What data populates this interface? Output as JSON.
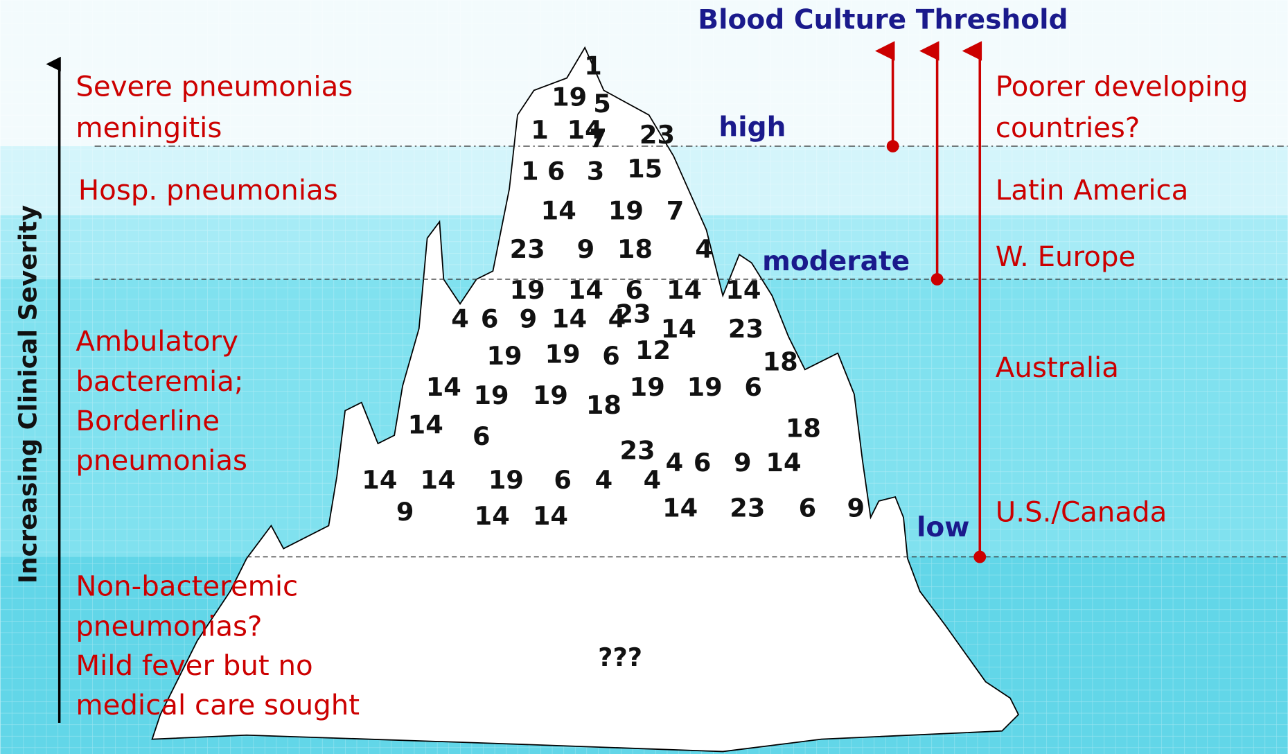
{
  "title": "Blood Culture Threshold",
  "y_axis_label": "Increasing Clinical Severity",
  "severity_groups": [
    [
      "Severe pneumonias",
      "meningitis"
    ],
    [
      "Hosp. pneumonias"
    ],
    [
      "Ambulatory",
      "bacteremia;",
      "Borderline",
      "pneumonias"
    ],
    [
      "Non-bacteremic",
      "pneumonias?",
      "Mild fever but no",
      "medical care sought"
    ]
  ],
  "thresholds": [
    "high",
    "moderate",
    "low"
  ],
  "regions": [
    [
      "Poorer developing",
      "countries?"
    ],
    [
      "Latin America"
    ],
    [
      "W. Europe"
    ],
    [
      "Australia"
    ],
    [
      "U.S./Canada"
    ]
  ],
  "serotypes": [
    "1",
    "19",
    "5",
    "1",
    "14",
    "7",
    "23",
    "1",
    "6",
    "3",
    "15",
    "14",
    "19",
    "7",
    "23",
    "9",
    "18",
    "4",
    "19",
    "14",
    "6",
    "14",
    "14",
    "4",
    "6",
    "9",
    "14",
    "4",
    "23",
    "14",
    "23",
    "19",
    "19",
    "6",
    "12",
    "18",
    "14",
    "19",
    "19",
    "18",
    "19",
    "19",
    "6",
    "14",
    "6",
    "18",
    "23",
    "4",
    "6",
    "9",
    "14",
    "14",
    "14",
    "19",
    "6",
    "4",
    "4",
    "9",
    "14",
    "14",
    "14",
    "23",
    "6",
    "9"
  ],
  "unknown": "???"
}
